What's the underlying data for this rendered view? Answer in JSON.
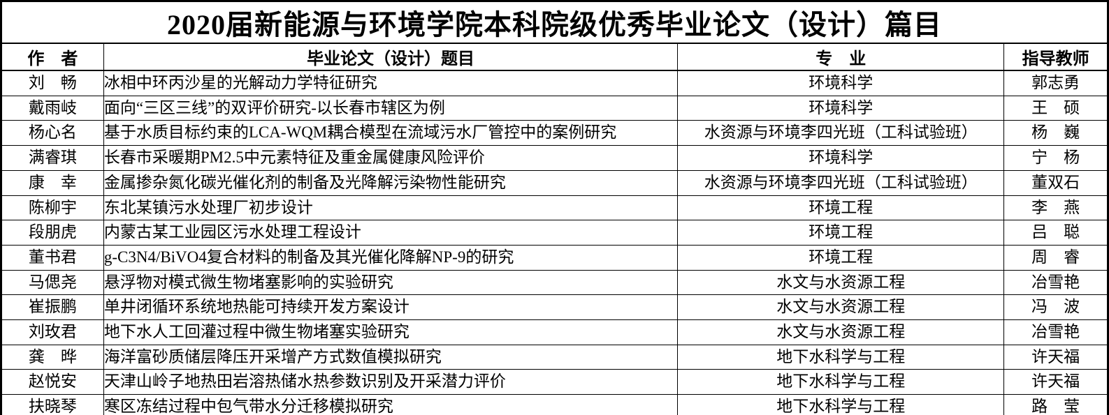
{
  "colors": {
    "background": "#ffffff",
    "text": "#000000",
    "border": "#000000"
  },
  "page_title": "2020届新能源与环境学院本科院级优秀毕业论文（设计）篇目",
  "table": {
    "columns": [
      {
        "key": "author",
        "label": "作　者"
      },
      {
        "key": "title",
        "label": "毕业论文（设计）题目"
      },
      {
        "key": "major",
        "label": "专　业"
      },
      {
        "key": "advisor",
        "label": "指导教师"
      }
    ],
    "rows": [
      {
        "author": "刘　畅",
        "title": "冰相中环丙沙星的光解动力学特征研究",
        "major": "环境科学",
        "advisor": "郭志勇"
      },
      {
        "author": "戴雨岐",
        "title": "面向“三区三线”的双评价研究-以长春市辖区为例",
        "major": "环境科学",
        "advisor": "王　硕"
      },
      {
        "author": "杨心名",
        "title": "基于水质目标约束的LCA-WQM耦合模型在流域污水厂管控中的案例研究",
        "major": "水资源与环境李四光班（工科试验班）",
        "advisor": "杨　巍"
      },
      {
        "author": "满睿琪",
        "title": "长春市采暖期PM2.5中元素特征及重金属健康风险评价",
        "major": "环境科学",
        "advisor": "宁　杨"
      },
      {
        "author": "康　幸",
        "title": "金属掺杂氮化碳光催化剂的制备及光降解污染物性能研究",
        "major": "水资源与环境李四光班（工科试验班）",
        "advisor": "董双石"
      },
      {
        "author": "陈柳宇",
        "title": "东北某镇污水处理厂初步设计",
        "major": "环境工程",
        "advisor": "李　燕"
      },
      {
        "author": "段朋虎",
        "title": "内蒙古某工业园区污水处理工程设计",
        "major": "环境工程",
        "advisor": "吕　聪"
      },
      {
        "author": "董书君",
        "title": "g-C3N4/BiVO4复合材料的制备及其光催化降解NP-9的研究",
        "major": "环境工程",
        "advisor": "周　睿"
      },
      {
        "author": "马偲尧",
        "title": "悬浮物对模式微生物堵塞影响的实验研究",
        "major": "水文与水资源工程",
        "advisor": "冶雪艳"
      },
      {
        "author": "崔振鹏",
        "title": "单井闭循环系统地热能可持续开发方案设计",
        "major": "水文与水资源工程",
        "advisor": "冯　波"
      },
      {
        "author": "刘玫君",
        "title": "地下水人工回灌过程中微生物堵塞实验研究",
        "major": "水文与水资源工程",
        "advisor": "冶雪艳"
      },
      {
        "author": "龚　晔",
        "title": "海洋富砂质储层降压开采增产方式数值模拟研究",
        "major": "地下水科学与工程",
        "advisor": "许天福"
      },
      {
        "author": "赵悦安",
        "title": "天津山岭子地热田岩溶热储水热参数识别及开采潜力评价",
        "major": "地下水科学与工程",
        "advisor": "许天福"
      },
      {
        "author": "扶晓琴",
        "title": "寒区冻结过程中包气带水分迁移模拟研究",
        "major": "地下水科学与工程",
        "advisor": "路　莹"
      }
    ]
  }
}
